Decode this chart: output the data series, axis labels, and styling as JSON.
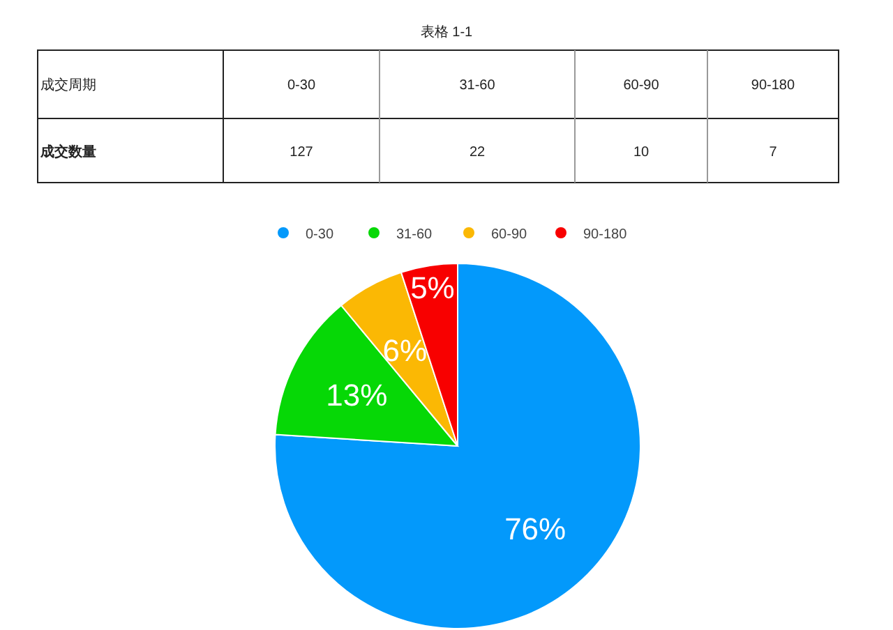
{
  "chart_data": {
    "type": "pie",
    "title": "表格 1-1",
    "xlabel": "成交周期",
    "ylabel": "成交数量",
    "categories": [
      "0-30",
      "31-60",
      "60-90",
      "90-180"
    ],
    "values": [
      76,
      13,
      6,
      5
    ],
    "annotations": [
      "127",
      "22",
      "10",
      "7"
    ],
    "colors": [
      "#0399fb",
      "#06d806",
      "#fbb804",
      "#f80000"
    ],
    "value_labels": [
      "76%",
      "13%",
      "6%",
      "5%"
    ],
    "legend": "top"
  }
}
